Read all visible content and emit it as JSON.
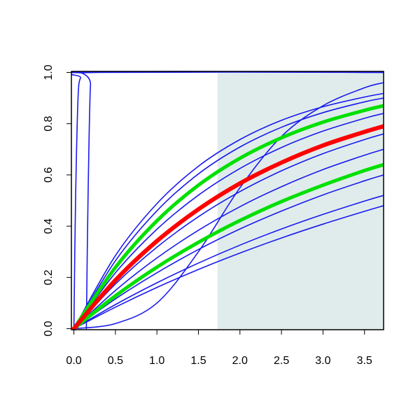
{
  "chart_data": {
    "type": "line",
    "x": [
      0,
      0.5,
      1,
      1.5,
      2,
      2.5,
      3,
      3.5,
      3.73
    ],
    "xlim": [
      -0.03,
      3.73
    ],
    "ylim": [
      -0.004,
      1.004
    ],
    "xticks": [
      {
        "value": 0,
        "label": "0.0"
      },
      0.5,
      {
        "value": 1,
        "label": "1.0"
      },
      1.5,
      {
        "value": 2,
        "label": "2.0"
      },
      2.5,
      {
        "value": 3,
        "label": "3.0"
      },
      3.5
    ],
    "yticks": [
      {
        "value": 0,
        "label": "0.0"
      },
      0.2,
      0.4,
      0.6,
      0.8,
      {
        "value": 1,
        "label": "1.0"
      }
    ],
    "shade_from": 1.73,
    "shade_color": "#e0ecec",
    "series": [
      {
        "color": "#1a1aee",
        "x": [
          0,
          0.02,
          0.05,
          0.08,
          0.12,
          3.73
        ],
        "values": [
          0,
          0.5,
          0.9,
          0.98,
          1,
          1
        ]
      },
      {
        "color": "#1a1aee",
        "x": [
          0.15,
          0.17,
          0.2,
          0.25,
          3.73
        ],
        "values": [
          0,
          0.5,
          0.95,
          1,
          1
        ]
      },
      {
        "color": "#1a1aee",
        "values": [
          0,
          0.02,
          0.1,
          0.3,
          0.55,
          0.75,
          0.87,
          0.94,
          0.96
        ]
      },
      {
        "color": "#1a1aee",
        "values": [
          0,
          0.285,
          0.488,
          0.634,
          0.738,
          0.813,
          0.866,
          0.904,
          0.918
        ]
      },
      {
        "color": "#1a1aee",
        "values": [
          0,
          0.265,
          0.46,
          0.604,
          0.709,
          0.786,
          0.843,
          0.885,
          0.9
        ]
      },
      {
        "color": "#1a1aee",
        "values": [
          0,
          0.218,
          0.388,
          0.521,
          0.625,
          0.707,
          0.771,
          0.821,
          0.84
        ]
      },
      {
        "color": "#1a1aee",
        "values": [
          0,
          0.174,
          0.318,
          0.437,
          0.535,
          0.616,
          0.683,
          0.738,
          0.76
        ]
      },
      {
        "color": "#1a1aee",
        "values": [
          0,
          0.149,
          0.276,
          0.384,
          0.476,
          0.554,
          0.621,
          0.677,
          0.7
        ]
      },
      {
        "color": "#1a1aee",
        "values": [
          0,
          0.116,
          0.218,
          0.309,
          0.389,
          0.459,
          0.522,
          0.577,
          0.6
        ]
      },
      {
        "color": "#1a1aee",
        "values": [
          0,
          0.094,
          0.179,
          0.256,
          0.326,
          0.389,
          0.446,
          0.498,
          0.52
        ]
      },
      {
        "color": "#1a1aee",
        "values": [
          0,
          0.084,
          0.161,
          0.231,
          0.295,
          0.354,
          0.408,
          0.458,
          0.48
        ]
      },
      {
        "color": "#00e000",
        "width": 5,
        "values": [
          0,
          0.239,
          0.421,
          0.56,
          0.665,
          0.745,
          0.806,
          0.852,
          0.87
        ]
      },
      {
        "color": "#00e000",
        "width": 5,
        "values": [
          0,
          0.128,
          0.24,
          0.337,
          0.422,
          0.496,
          0.56,
          0.617,
          0.64
        ]
      },
      {
        "color": "#ff0000",
        "width": 6,
        "values": [
          0,
          0.189,
          0.342,
          0.466,
          0.567,
          0.648,
          0.715,
          0.768,
          0.79
        ]
      }
    ]
  }
}
